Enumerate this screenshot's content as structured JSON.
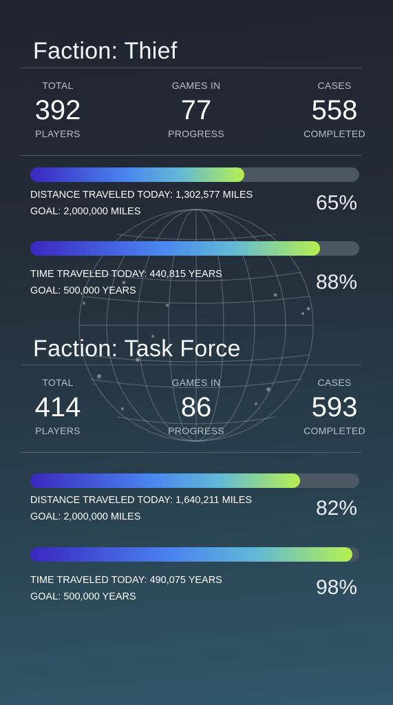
{
  "factions": [
    {
      "title": "Faction: Thief",
      "stats": [
        {
          "top": "TOTAL",
          "value": "392",
          "bottom": "PLAYERS"
        },
        {
          "top": "GAMES IN",
          "value": "77",
          "bottom": "PROGRESS"
        },
        {
          "top": "CASES",
          "value": "558",
          "bottom": "COMPLETED"
        }
      ],
      "bars": [
        {
          "line1": "DISTANCE TRAVELED TODAY: 1,302,577 MILES",
          "line2": "GOAL: 2,000,000 MILES",
          "percent_label": "65%",
          "fill": 0.65
        },
        {
          "line1": "TIME TRAVELED TODAY: 440,815 YEARS",
          "line2": "GOAL: 500,000 YEARS",
          "percent_label": "88%",
          "fill": 0.88
        }
      ]
    },
    {
      "title": "Faction: Task Force",
      "stats": [
        {
          "top": "TOTAL",
          "value": "414",
          "bottom": "PLAYERS"
        },
        {
          "top": "GAMES IN",
          "value": "86",
          "bottom": "PROGRESS"
        },
        {
          "top": "CASES",
          "value": "593",
          "bottom": "COMPLETED"
        }
      ],
      "bars": [
        {
          "line1": "DISTANCE TRAVELED TODAY: 1,640,211 MILES",
          "line2": "GOAL: 2,000,000 MILES",
          "percent_label": "82%",
          "fill": 0.82
        },
        {
          "line1": "TIME TRAVELED TODAY: 490,075 YEARS",
          "line2": "GOAL: 500,000 YEARS",
          "percent_label": "98%",
          "fill": 0.98
        }
      ]
    }
  ],
  "colors": {
    "bar_start": "#3a27bf",
    "bar_mid": "#4a86f0",
    "bar_end": "#b6ef4f",
    "track": "#4b5762"
  },
  "background_icon": "globe-icon"
}
